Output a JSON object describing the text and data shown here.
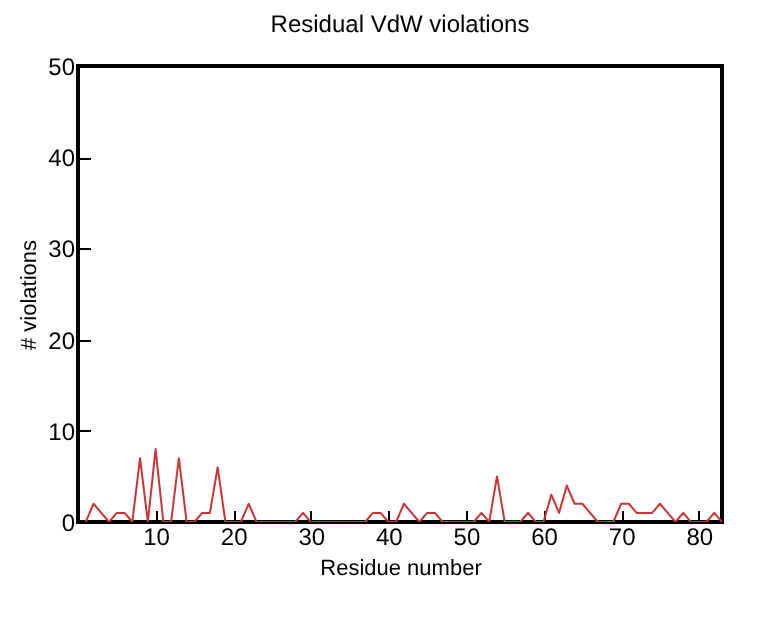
{
  "chart_data": {
    "type": "line",
    "title": "Residual VdW violations",
    "xlabel": "Residue number",
    "ylabel": "# violations",
    "x": [
      1,
      2,
      3,
      4,
      5,
      6,
      7,
      8,
      9,
      10,
      11,
      12,
      13,
      14,
      15,
      16,
      17,
      18,
      19,
      20,
      21,
      22,
      23,
      24,
      25,
      26,
      27,
      28,
      29,
      30,
      31,
      32,
      33,
      34,
      35,
      36,
      37,
      38,
      39,
      40,
      41,
      42,
      43,
      44,
      45,
      46,
      47,
      48,
      49,
      50,
      51,
      52,
      53,
      54,
      55,
      56,
      57,
      58,
      59,
      60,
      61,
      62,
      63,
      64,
      65,
      66,
      67,
      68,
      69,
      70,
      71,
      72,
      73,
      74,
      75,
      76,
      77,
      78,
      79,
      80,
      81,
      82,
      83
    ],
    "series": [
      {
        "color": "#cc3333",
        "values": [
          0,
          2,
          1,
          0,
          1,
          1,
          0,
          7,
          0,
          8,
          0,
          0,
          7,
          0,
          0,
          1,
          1,
          6,
          0,
          0,
          0,
          2,
          0,
          0,
          0,
          0,
          0,
          0,
          1,
          0,
          0,
          0,
          0,
          0,
          0,
          0,
          0,
          1,
          1,
          0,
          0,
          2,
          1,
          0,
          1,
          1,
          0,
          0,
          0,
          0,
          0,
          1,
          0,
          5,
          0,
          0,
          0,
          1,
          0,
          0,
          3,
          1,
          4,
          2,
          2,
          1,
          0,
          0,
          0,
          2,
          2,
          1,
          1,
          1,
          2,
          1,
          0,
          1,
          0,
          0,
          0,
          1,
          0
        ]
      }
    ],
    "xlim": [
      0,
      83
    ],
    "xticks": [
      10,
      20,
      30,
      40,
      50,
      60,
      70,
      80
    ],
    "ylim": [
      0,
      50
    ],
    "yticks": [
      0,
      10,
      20,
      30,
      40,
      50
    ],
    "grid": false,
    "legend": false,
    "marker": "none",
    "line_style": "solid"
  }
}
